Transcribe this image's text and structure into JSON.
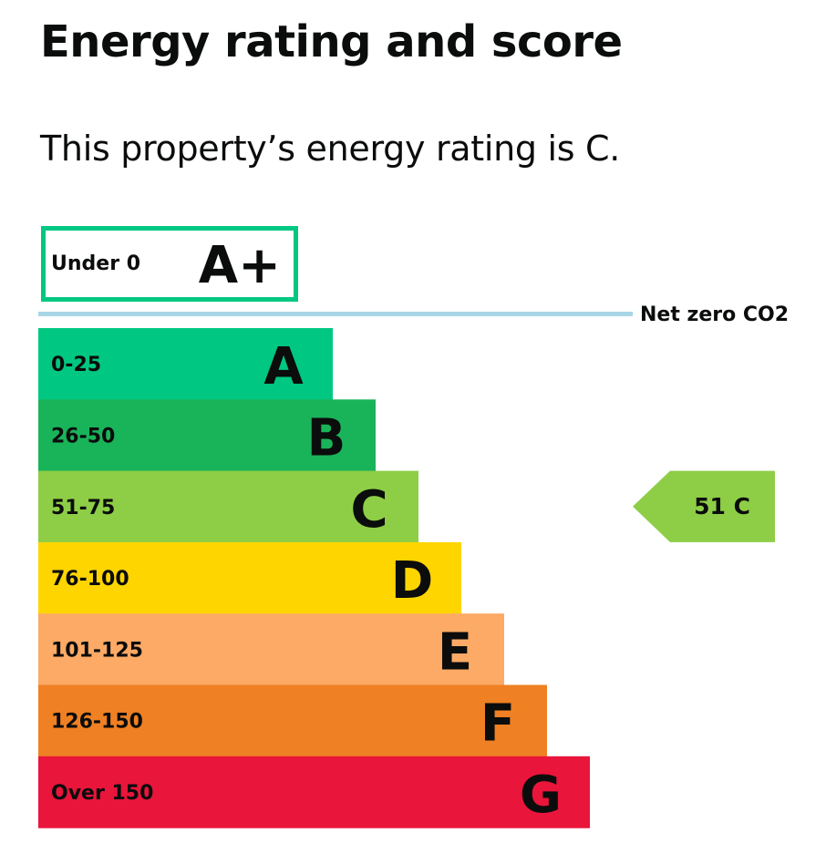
{
  "page": {
    "heading": "Energy rating and score",
    "summary": "This property’s energy rating is C."
  },
  "chart_data": {
    "type": "bar",
    "categories": [
      "A+",
      "A",
      "B",
      "C",
      "D",
      "E",
      "F",
      "G"
    ],
    "score_ranges": [
      "Under 0",
      "0-25",
      "26-50",
      "51-75",
      "76-100",
      "101-125",
      "126-150",
      "Over 150"
    ],
    "colors": [
      "#00c781",
      "#00c781",
      "#19b459",
      "#8dce46",
      "#ffd500",
      "#fcaa65",
      "#ef8023",
      "#e9153b"
    ],
    "net_zero_label": "Net zero CO2",
    "net_zero_line_color": "#a7d6e6",
    "current": {
      "score": 51,
      "rating": "C",
      "color": "#8dce46"
    }
  }
}
